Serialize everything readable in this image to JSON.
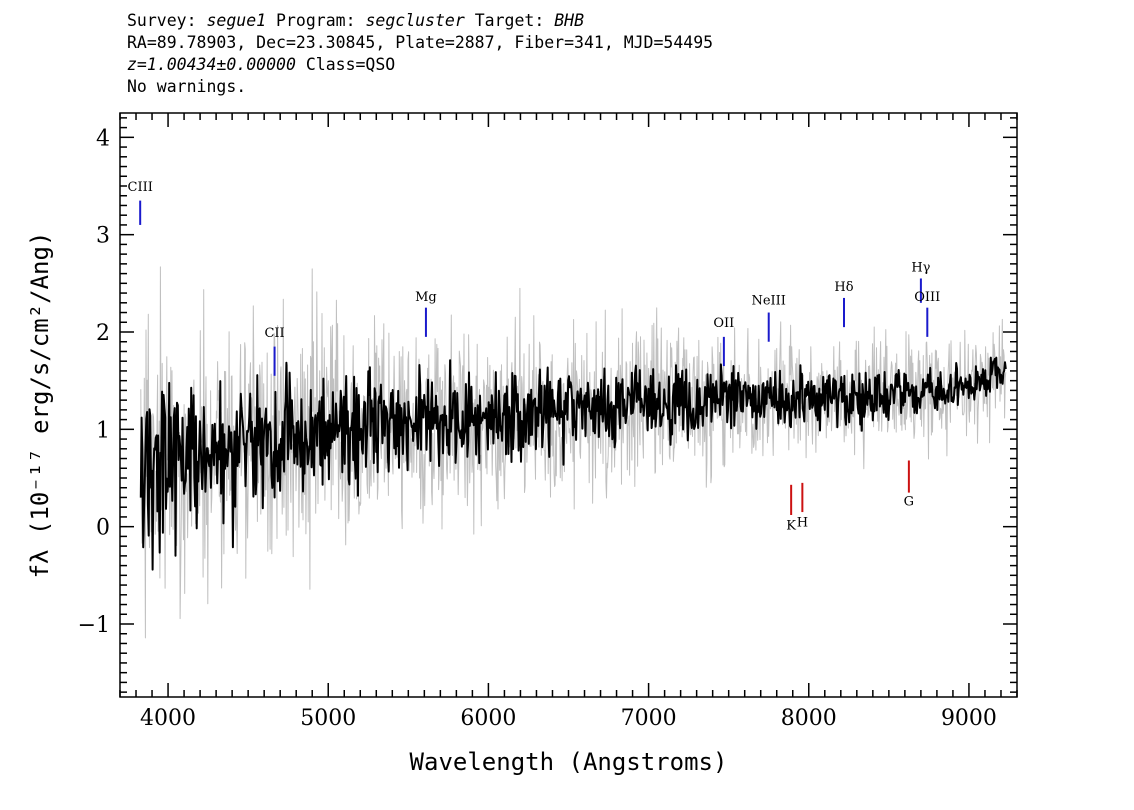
{
  "header": {
    "survey_label": "Survey:",
    "survey": "segue1",
    "program_label": "Program:",
    "program": "segcluster",
    "target_label": "Target:",
    "target": "BHB",
    "line2": "RA=89.78903, Dec=23.30845, Plate=2887, Fiber=341, MJD=54495",
    "redshift": "z=1.00434±0.00000",
    "class": "Class=QSO",
    "warnings": "No warnings."
  },
  "chart_data": {
    "type": "line",
    "xlabel": "Wavelength (Angstroms)",
    "ylabel": "fλ (10⁻¹⁷ erg/s/cm²/Ang)",
    "xlim": [
      3700,
      9300
    ],
    "ylim": [
      -1.75,
      4.25
    ],
    "xticks": [
      4000,
      5000,
      6000,
      7000,
      8000,
      9000
    ],
    "xtick_labels": [
      "4000",
      "5000",
      "6000",
      "7000",
      "8000",
      "9000"
    ],
    "yticks": [
      -1,
      0,
      1,
      2,
      3,
      4
    ],
    "ytick_labels": [
      "−1",
      "0",
      "1",
      "2",
      "3",
      "4"
    ],
    "grid": false,
    "series": [
      {
        "role": "flux",
        "color": "#000000",
        "continuum": [
          [
            3830,
            0.6
          ],
          [
            4000,
            0.6
          ],
          [
            4500,
            0.85
          ],
          [
            5000,
            0.95
          ],
          [
            5500,
            1.05
          ],
          [
            6000,
            1.1
          ],
          [
            6500,
            1.2
          ],
          [
            7000,
            1.28
          ],
          [
            7500,
            1.3
          ],
          [
            8000,
            1.3
          ],
          [
            8500,
            1.35
          ],
          [
            9000,
            1.45
          ],
          [
            9230,
            1.6
          ]
        ],
        "noise_start": 0.8,
        "noise_end": 0.18
      },
      {
        "role": "error",
        "color": "#c0c0c0",
        "continuum": [
          [
            3830,
            0.6
          ],
          [
            4000,
            0.6
          ],
          [
            4500,
            0.85
          ],
          [
            5000,
            0.95
          ],
          [
            5500,
            1.05
          ],
          [
            6000,
            1.1
          ],
          [
            6500,
            1.2
          ],
          [
            7000,
            1.28
          ],
          [
            7500,
            1.3
          ],
          [
            8000,
            1.3
          ],
          [
            8500,
            1.35
          ],
          [
            9000,
            1.45
          ],
          [
            9230,
            1.6
          ]
        ],
        "noise_start": 1.5,
        "noise_end": 0.45
      }
    ],
    "annotations": {
      "emission": [
        {
          "label": "CIII",
          "x": 3826,
          "y_bottom": 3.1,
          "y_top": 3.35,
          "label_y": 3.45
        },
        {
          "label": "CII",
          "x": 4665,
          "y_bottom": 1.55,
          "y_top": 1.85,
          "label_y": 1.95
        },
        {
          "label": "Mg",
          "x": 5610,
          "y_bottom": 1.95,
          "y_top": 2.25,
          "label_y": 2.32
        },
        {
          "label": "OII",
          "x": 7470,
          "y_bottom": 1.65,
          "y_top": 1.95,
          "label_y": 2.05
        },
        {
          "label": "NeIII",
          "x": 7750,
          "y_bottom": 1.9,
          "y_top": 2.2,
          "label_y": 2.28
        },
        {
          "label": "Hδ",
          "x": 8220,
          "y_bottom": 2.05,
          "y_top": 2.35,
          "label_y": 2.42
        },
        {
          "label": "Hγ",
          "x": 8700,
          "y_bottom": 2.3,
          "y_top": 2.55,
          "label_y": 2.62
        },
        {
          "label": "OIII",
          "x": 8740,
          "y_bottom": 1.95,
          "y_top": 2.25,
          "label_y": 2.32
        }
      ],
      "absorption": [
        {
          "label": "K",
          "x": 7890,
          "y_bottom": 0.12,
          "y_top": 0.43,
          "label_y": -0.03
        },
        {
          "label": "H",
          "x": 7960,
          "y_bottom": 0.15,
          "y_top": 0.45,
          "label_y": 0.0
        },
        {
          "label": "G",
          "x": 8625,
          "y_bottom": 0.35,
          "y_top": 0.68,
          "label_y": 0.22
        }
      ],
      "emission_color": "#1a1acc",
      "absorption_color": "#cc1111"
    }
  }
}
